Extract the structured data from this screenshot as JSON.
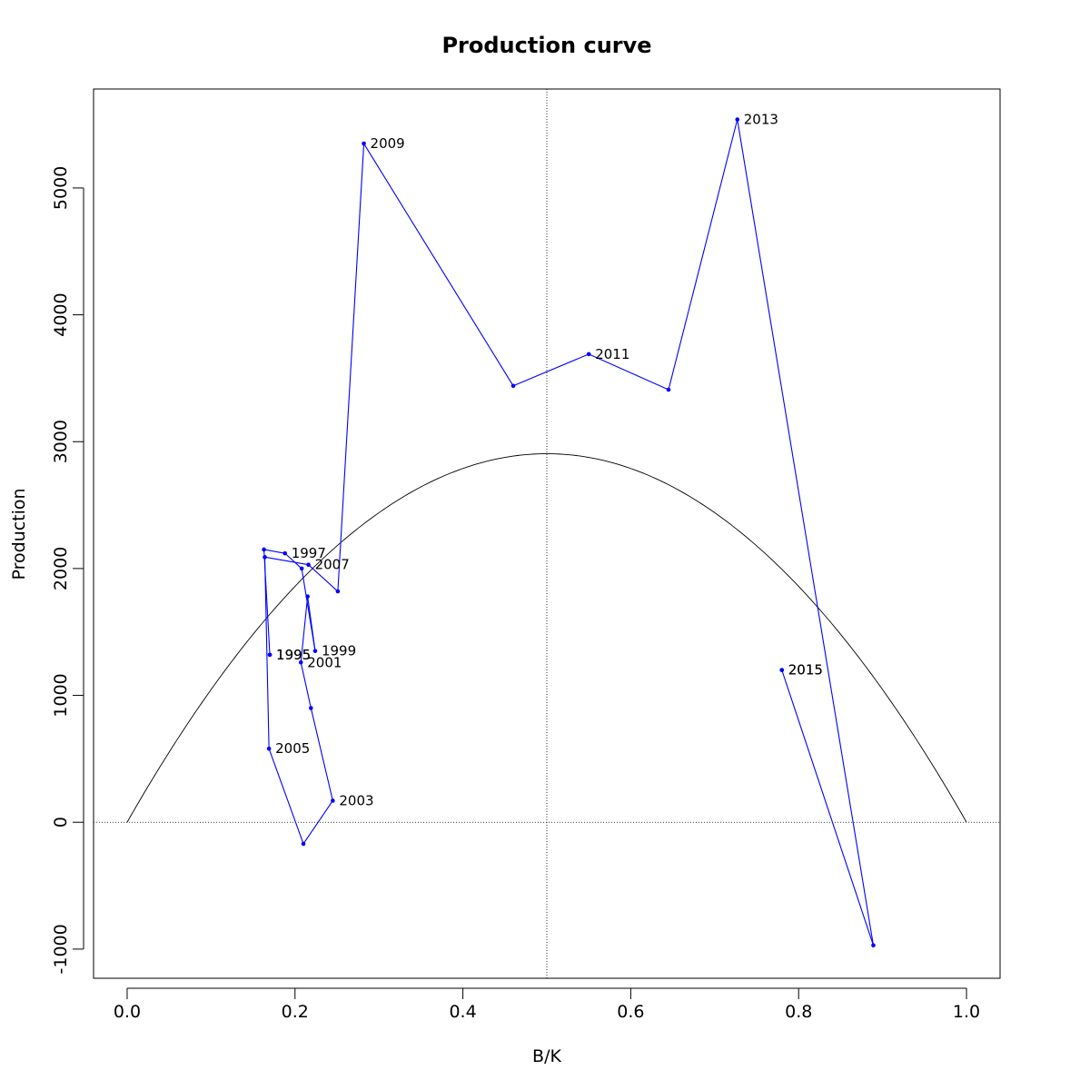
{
  "chart_data": {
    "type": "line",
    "title": "Production curve",
    "xlabel": "B/K",
    "ylabel": "Production",
    "xlim": [
      -0.04,
      1.04
    ],
    "ylim": [
      -1230,
      5780
    ],
    "x_ticks": [
      0.0,
      0.2,
      0.4,
      0.6,
      0.8,
      1.0
    ],
    "x_tick_labels": [
      "0.0",
      "0.2",
      "0.4",
      "0.6",
      "0.8",
      "1.0"
    ],
    "y_ticks": [
      -1000,
      0,
      1000,
      2000,
      3000,
      4000,
      5000
    ],
    "y_tick_labels": [
      "-1000",
      "0",
      "1000",
      "2000",
      "3000",
      "4000",
      "5000"
    ],
    "grid": false,
    "reference_lines": {
      "horizontal_y": 0,
      "vertical_x": 0.5,
      "style": "dotted"
    },
    "curve": {
      "type": "parabola",
      "peak_x": 0.5,
      "peak_y": 2905,
      "x_range": [
        0,
        1
      ],
      "color": "#000000"
    },
    "series": [
      {
        "color": "#0000ff",
        "points": [
          {
            "x": 0.17,
            "y": 1320,
            "label": "1995"
          },
          {
            "x": 0.17,
            "y": 1320,
            "label": "1995"
          },
          {
            "x": 0.163,
            "y": 2150,
            "label": ""
          },
          {
            "x": 0.188,
            "y": 2120,
            "label": "1997"
          },
          {
            "x": 0.208,
            "y": 2000,
            "label": ""
          },
          {
            "x": 0.224,
            "y": 1350,
            "label": "1999"
          },
          {
            "x": 0.215,
            "y": 1780,
            "label": ""
          },
          {
            "x": 0.207,
            "y": 1260,
            "label": "2001"
          },
          {
            "x": 0.219,
            "y": 900,
            "label": ""
          },
          {
            "x": 0.245,
            "y": 170,
            "label": "2003"
          },
          {
            "x": 0.21,
            "y": -170,
            "label": ""
          },
          {
            "x": 0.169,
            "y": 580,
            "label": "2005"
          },
          {
            "x": 0.164,
            "y": 2090,
            "label": ""
          },
          {
            "x": 0.216,
            "y": 2030,
            "label": "2007"
          },
          {
            "x": 0.251,
            "y": 1820,
            "label": ""
          },
          {
            "x": 0.282,
            "y": 5350,
            "label": "2009"
          },
          {
            "x": 0.46,
            "y": 3440,
            "label": ""
          },
          {
            "x": 0.55,
            "y": 3690,
            "label": "2011"
          },
          {
            "x": 0.645,
            "y": 3410,
            "label": ""
          },
          {
            "x": 0.727,
            "y": 5540,
            "label": "2013"
          },
          {
            "x": 0.889,
            "y": -970,
            "label": ""
          },
          {
            "x": 0.78,
            "y": 1200,
            "label": "2015"
          },
          {
            "x": 0.78,
            "y": 1200,
            "label": "2015"
          }
        ]
      }
    ]
  }
}
